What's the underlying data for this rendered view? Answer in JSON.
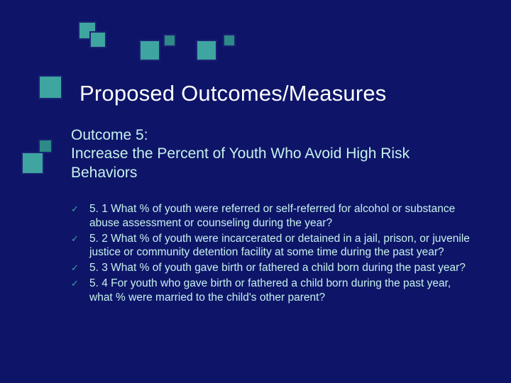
{
  "colors": {
    "background": "#0e1568",
    "accent_square": "#3fa5a0",
    "accent_square_dark": "#2d8a86",
    "title_text": "#ffffff",
    "body_text": "#c6f1ee",
    "bullet_check": "#3fa5a0"
  },
  "slide": {
    "title": "Proposed Outcomes/Measures",
    "title_fontsize": 31,
    "subtitle_line1": "Outcome 5:",
    "subtitle_line2": "Increase the Percent of Youth Who Avoid High Risk Behaviors",
    "subtitle_fontsize": 21,
    "bullet_fontsize": 15.5,
    "bullets": [
      "5. 1 What % of youth were referred or self-referred for alcohol or substance abuse assessment or counseling during the year?",
      "5. 2 What % of youth were incarcerated or detained in a jail, prison, or juvenile justice or community detention facility at some time during the past year?",
      "5. 3   What % of youth gave birth or fathered a child born during the past year?",
      "5. 4   For youth who gave birth or fathered a child born during the past year, what % were married to the child's other parent?"
    ]
  }
}
